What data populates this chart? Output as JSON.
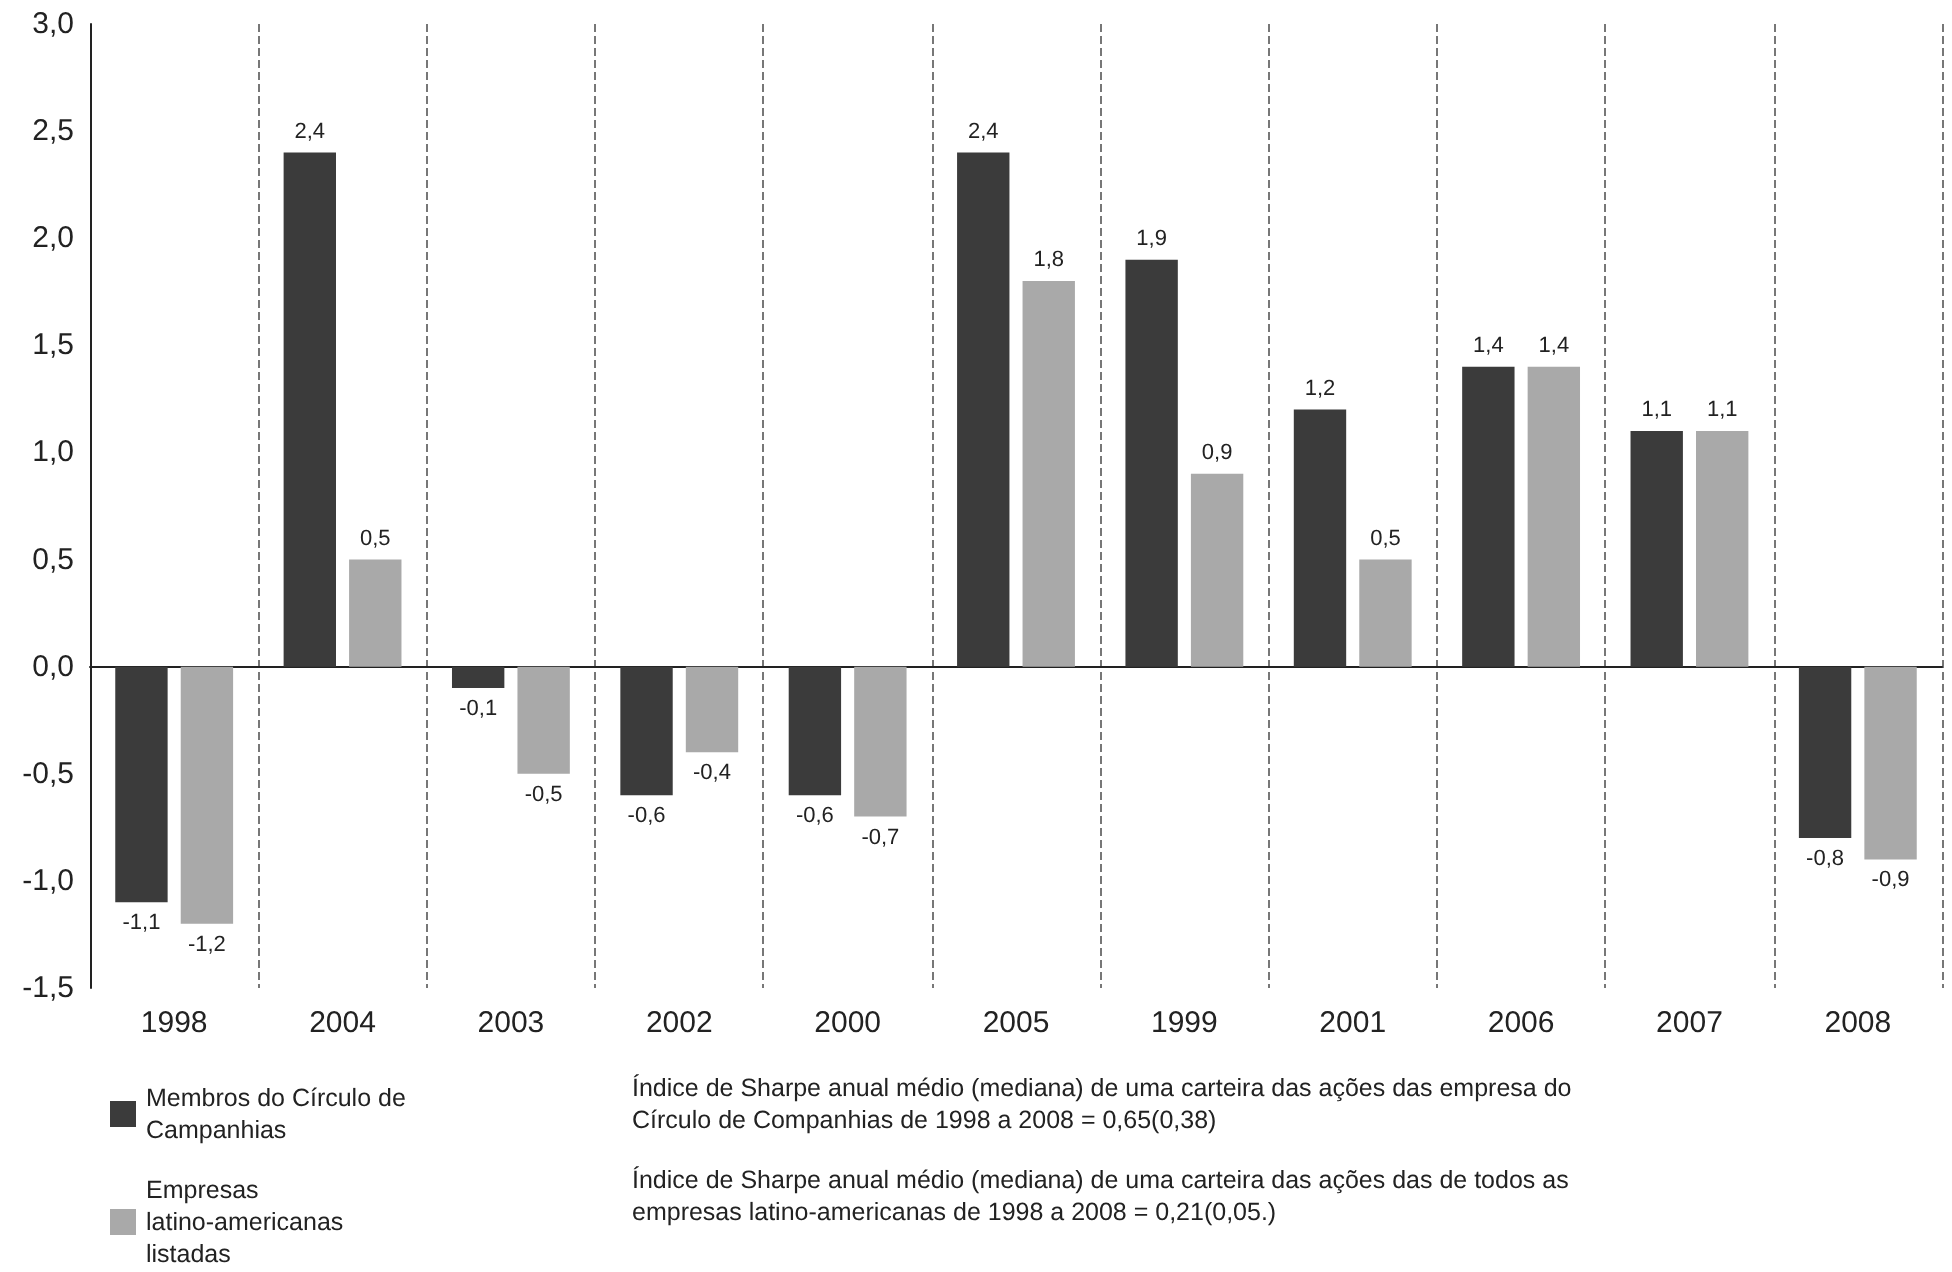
{
  "chart_data": {
    "type": "bar",
    "categories": [
      "1998",
      "2004",
      "2003",
      "2002",
      "2000",
      "2005",
      "1999",
      "2001",
      "2006",
      "2007",
      "2008"
    ],
    "series": [
      {
        "name": "Membros do Círculo de Campanhias",
        "color": "#3b3b3b",
        "values": [
          -1.1,
          2.4,
          -0.1,
          -0.6,
          -0.6,
          2.4,
          1.9,
          1.2,
          1.4,
          1.1,
          -0.8
        ],
        "value_labels": [
          "-1,1",
          "2,4",
          "-0,1",
          "-0,6",
          "-0,6",
          "2,4",
          "1,9",
          "1,2",
          "1,4",
          "1,1",
          "-0,8"
        ]
      },
      {
        "name": "Empresas latino-americanas listadas",
        "color": "#a9a9a9",
        "values": [
          -1.2,
          0.5,
          -0.5,
          -0.4,
          -0.7,
          1.8,
          0.9,
          0.5,
          1.4,
          1.1,
          -0.9
        ],
        "value_labels": [
          "-1,2",
          "0,5",
          "-0,5",
          "-0,4",
          "-0,7",
          "1,8",
          "0,9",
          "0,5",
          "1,4",
          "1,1",
          "-0,9"
        ]
      }
    ],
    "ylim": [
      -1.5,
      3.0
    ],
    "yticks": [
      {
        "value": -1.5,
        "label": "-1,5"
      },
      {
        "value": -1.0,
        "label": "-1,0"
      },
      {
        "value": -0.5,
        "label": "-0,5"
      },
      {
        "value": 0,
        "label": "0,0"
      },
      {
        "value": 0.5,
        "label": "0,5"
      },
      {
        "value": 1.0,
        "label": "1,0"
      },
      {
        "value": 1.5,
        "label": "1,5"
      },
      {
        "value": 2.0,
        "label": "2,0"
      },
      {
        "value": 2.5,
        "label": "2,5"
      },
      {
        "value": 3.0,
        "label": "3,0"
      }
    ],
    "grid": "x",
    "legend": "bottom left",
    "annotations": [
      "Índice de Sharpe anual médio (mediana) de uma carteira das ações das empresa do Círculo de Companhias de 1998 a 2008 = 0,65(0,38)",
      "Índice de Sharpe anual médio (mediana) de uma carteira das ações das de todos as empresas latino-americanas de 1998 a 2008 = 0,21(0,05.)"
    ]
  }
}
